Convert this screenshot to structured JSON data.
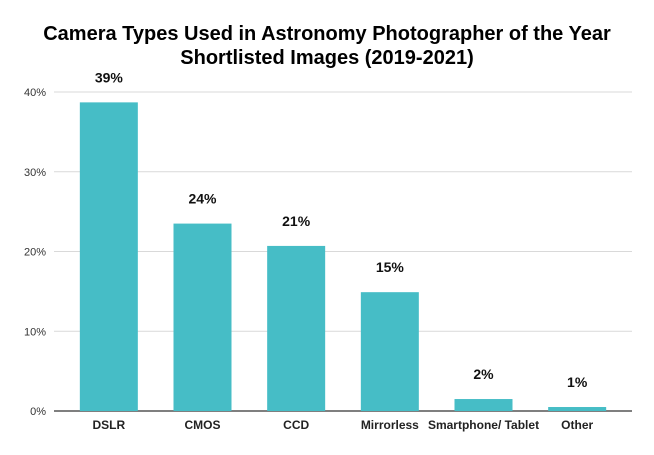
{
  "chart_data": {
    "type": "bar",
    "title_lines": [
      "Camera Types Used in Astronomy Photographer of the Year",
      "Shortlisted Images (2019-2021)"
    ],
    "categories": [
      "DSLR",
      "CMOS",
      "CCD",
      "Mirrorless",
      "Smartphone/ Tablet",
      "Other"
    ],
    "values": [
      38.7,
      23.5,
      20.7,
      14.9,
      1.5,
      0.5
    ],
    "data_labels": [
      "39%",
      "24%",
      "21%",
      "15%",
      "2%",
      "1%"
    ],
    "yticks": [
      0,
      10,
      20,
      30,
      40
    ],
    "ytick_labels": [
      "0%",
      "10%",
      "20%",
      "30%",
      "40%"
    ],
    "ylim": [
      0,
      40
    ],
    "xlabel": "",
    "ylabel": "",
    "grid": true,
    "legend": "none",
    "colors": {
      "bar": "#46bdc6",
      "grid": "#d9d9d9",
      "axis": "#333333"
    }
  }
}
